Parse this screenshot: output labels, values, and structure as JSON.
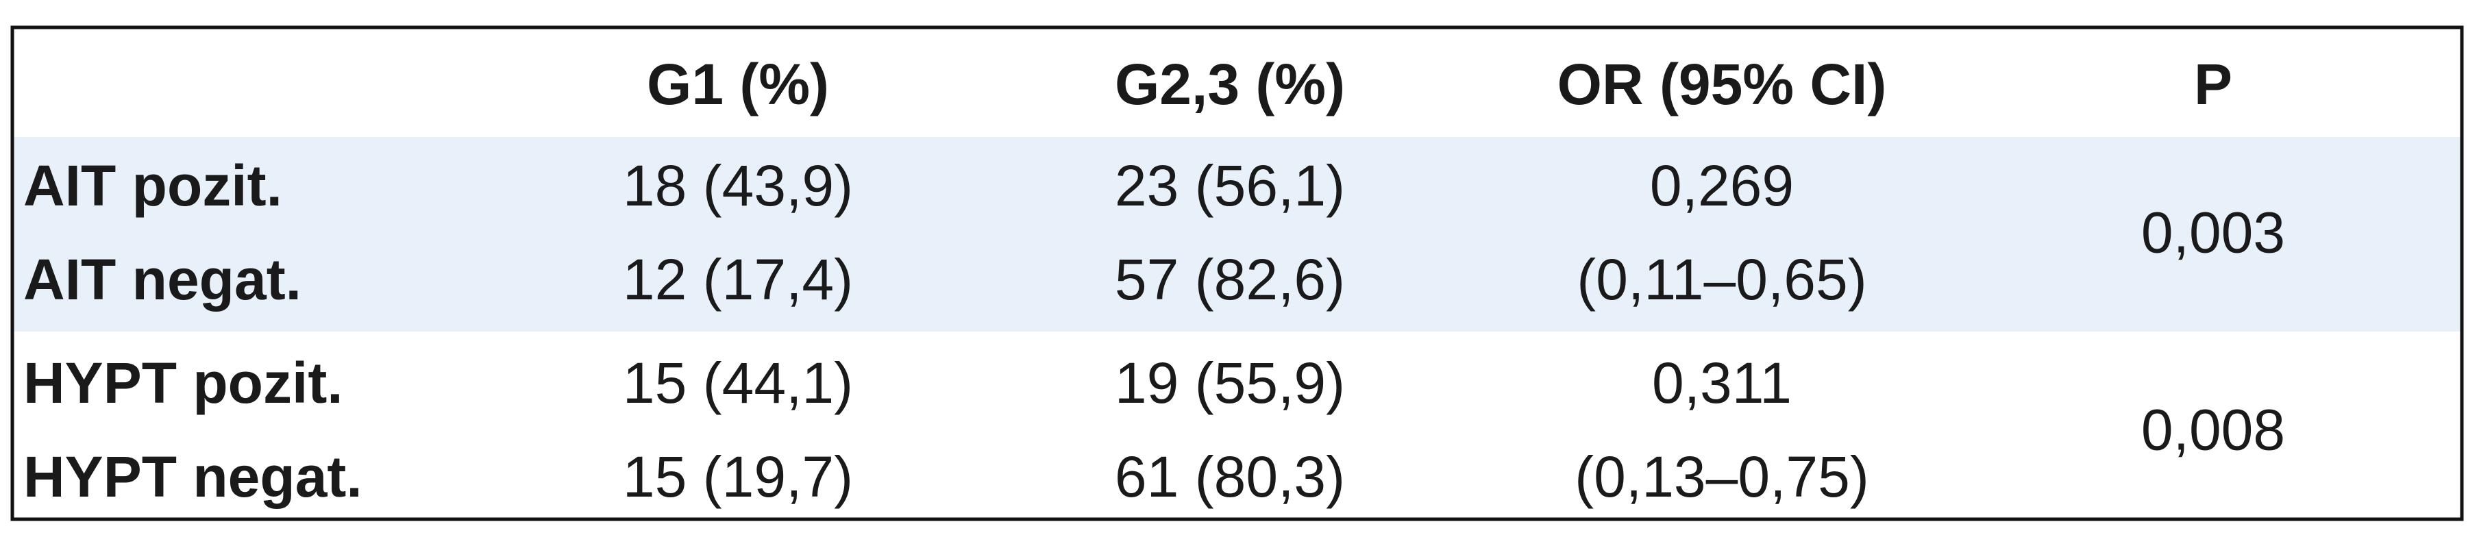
{
  "table": {
    "header": [
      "G1 (%)",
      "G2,3 (%)",
      "OR (95% CI)",
      "P"
    ],
    "groups": [
      {
        "rows": [
          {
            "label": "AIT pozit.",
            "g1": "18 (43,9)",
            "g23": "23 (56,1)"
          },
          {
            "label": "AIT negat.",
            "g1": "12 (17,4)",
            "g23": "57 (82,6)"
          }
        ],
        "or": "0,269",
        "ci": "(0,11–0,65)",
        "p": "0,003"
      },
      {
        "rows": [
          {
            "label": "HYPT pozit.",
            "g1": "15 (44,1)",
            "g23": "19 (55,9)"
          },
          {
            "label": "HYPT negat.",
            "g1": "15 (19,7)",
            "g23": "61 (80,3)"
          }
        ],
        "or": "0,311",
        "ci": "(0,13–0,75)",
        "p": "0,008"
      }
    ]
  }
}
